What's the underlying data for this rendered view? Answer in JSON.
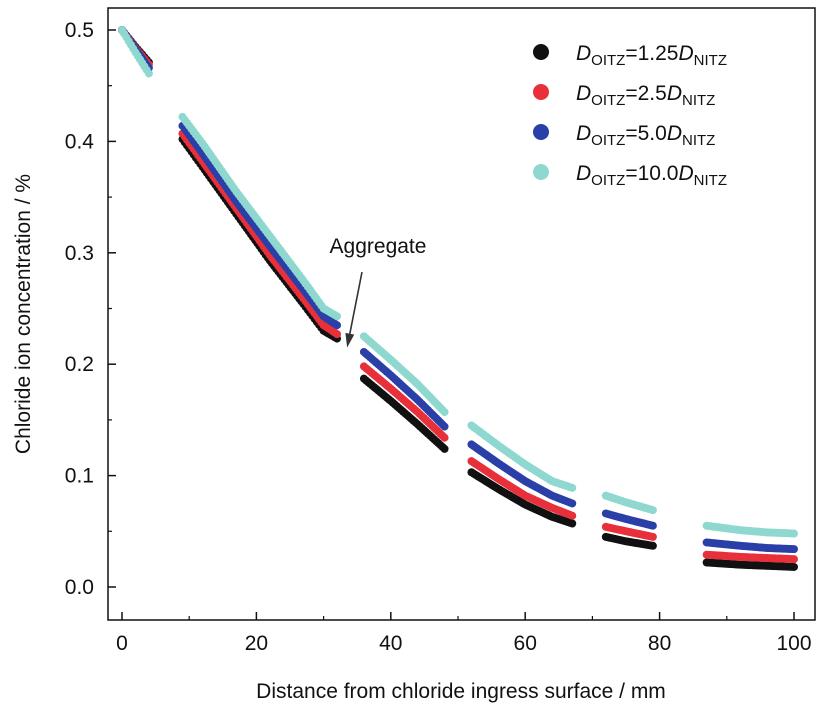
{
  "chart_data": {
    "type": "scatter",
    "title": "",
    "xlabel": "Distance from chloride ingress surface / mm",
    "ylabel": "Chloride ion concentration / %",
    "xlim": [
      -2,
      102
    ],
    "ylim": [
      -0.03,
      0.52
    ],
    "xticks": [
      "0",
      "20",
      "40",
      "60",
      "80",
      "100"
    ],
    "yticks": [
      "0.0",
      "0.1",
      "0.2",
      "0.3",
      "0.4",
      "0.5"
    ],
    "xtick_values": [
      0,
      20,
      40,
      60,
      80,
      100
    ],
    "ytick_values": [
      0.0,
      0.1,
      0.2,
      0.3,
      0.4,
      0.5
    ],
    "grid": false,
    "legend_position": "top-right",
    "annotation": {
      "text": "Aggregate",
      "points_to": [
        33.5,
        0.215
      ]
    },
    "series": [
      {
        "name": "DOITZ=1.25DNITZ",
        "label_parts": {
          "d1": "D",
          "s1": "OITZ",
          "mid": "=1.25",
          "d2": "D",
          "s2": "NITZ"
        },
        "color": "#111111",
        "segments": [
          {
            "x": [
              0,
              2,
              4
            ],
            "y": [
              0.5,
              0.485,
              0.471
            ]
          },
          {
            "x": [
              9,
              12,
              17,
              22,
              27,
              30,
              32
            ],
            "y": [
              0.402,
              0.377,
              0.335,
              0.293,
              0.254,
              0.23,
              0.223
            ]
          },
          {
            "x": [
              36,
              40,
              44,
              48
            ],
            "y": [
              0.187,
              0.167,
              0.146,
              0.124
            ]
          },
          {
            "x": [
              52,
              56,
              60,
              64,
              67
            ],
            "y": [
              0.103,
              0.088,
              0.074,
              0.063,
              0.057
            ]
          },
          {
            "x": [
              72,
              75,
              79
            ],
            "y": [
              0.045,
              0.041,
              0.037
            ]
          },
          {
            "x": [
              87,
              92,
              96,
              100
            ],
            "y": [
              0.022,
              0.02,
              0.019,
              0.018
            ]
          }
        ]
      },
      {
        "name": "DOITZ=2.5DNITZ",
        "label_parts": {
          "d1": "D",
          "s1": "OITZ",
          "mid": "=2.5",
          "d2": "D",
          "s2": "NITZ"
        },
        "color": "#e8303a",
        "segments": [
          {
            "x": [
              0,
              2,
              4
            ],
            "y": [
              0.5,
              0.484,
              0.469
            ]
          },
          {
            "x": [
              9,
              12,
              17,
              22,
              27,
              30,
              32
            ],
            "y": [
              0.407,
              0.382,
              0.34,
              0.298,
              0.259,
              0.235,
              0.227
            ]
          },
          {
            "x": [
              36,
              40,
              44,
              48
            ],
            "y": [
              0.198,
              0.178,
              0.157,
              0.134
            ]
          },
          {
            "x": [
              52,
              56,
              60,
              64,
              67
            ],
            "y": [
              0.113,
              0.097,
              0.082,
              0.071,
              0.064
            ]
          },
          {
            "x": [
              72,
              75,
              79
            ],
            "y": [
              0.054,
              0.05,
              0.045
            ]
          },
          {
            "x": [
              87,
              92,
              96,
              100
            ],
            "y": [
              0.029,
              0.027,
              0.026,
              0.025
            ]
          }
        ]
      },
      {
        "name": "DOITZ=5.0DNITZ",
        "label_parts": {
          "d1": "D",
          "s1": "OITZ",
          "mid": "=5.0",
          "d2": "D",
          "s2": "NITZ"
        },
        "color": "#2a3fa8",
        "segments": [
          {
            "x": [
              0,
              2,
              4
            ],
            "y": [
              0.5,
              0.483,
              0.466
            ]
          },
          {
            "x": [
              9,
              12,
              17,
              22,
              27,
              30,
              32
            ],
            "y": [
              0.414,
              0.389,
              0.346,
              0.306,
              0.267,
              0.243,
              0.235
            ]
          },
          {
            "x": [
              36,
              40,
              44,
              48
            ],
            "y": [
              0.211,
              0.19,
              0.168,
              0.144
            ]
          },
          {
            "x": [
              52,
              56,
              60,
              64,
              67
            ],
            "y": [
              0.128,
              0.111,
              0.095,
              0.082,
              0.075
            ]
          },
          {
            "x": [
              72,
              75,
              79
            ],
            "y": [
              0.066,
              0.061,
              0.055
            ]
          },
          {
            "x": [
              87,
              92,
              96,
              100
            ],
            "y": [
              0.04,
              0.037,
              0.035,
              0.034
            ]
          }
        ]
      },
      {
        "name": "DOITZ=10.0DNITZ",
        "label_parts": {
          "d1": "D",
          "s1": "OITZ",
          "mid": "=10.0",
          "d2": "D",
          "s2": "NITZ"
        },
        "color": "#8fd8cf",
        "segments": [
          {
            "x": [
              0,
              2,
              4
            ],
            "y": [
              0.5,
              0.48,
              0.461
            ]
          },
          {
            "x": [
              9,
              12,
              17,
              22,
              27,
              30,
              32
            ],
            "y": [
              0.422,
              0.398,
              0.355,
              0.315,
              0.275,
              0.25,
              0.243
            ]
          },
          {
            "x": [
              36,
              40,
              44,
              48
            ],
            "y": [
              0.225,
              0.204,
              0.182,
              0.157
            ]
          },
          {
            "x": [
              52,
              56,
              60,
              64,
              67
            ],
            "y": [
              0.145,
              0.127,
              0.11,
              0.095,
              0.089
            ]
          },
          {
            "x": [
              72,
              75,
              79
            ],
            "y": [
              0.082,
              0.076,
              0.069
            ]
          },
          {
            "x": [
              87,
              92,
              96,
              100
            ],
            "y": [
              0.055,
              0.051,
              0.049,
              0.048
            ]
          }
        ]
      }
    ]
  }
}
